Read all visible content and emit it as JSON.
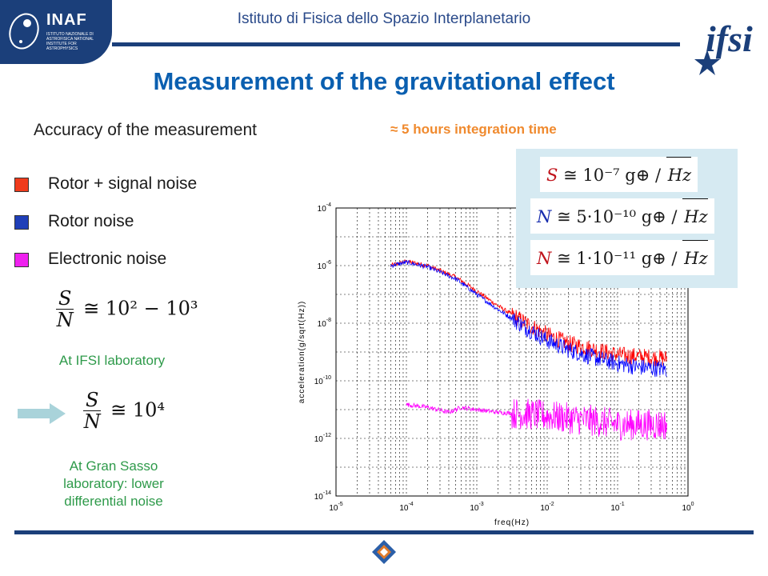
{
  "header": {
    "inaf_logo_name": "INAF",
    "inaf_logo_subtitle": "ISTITUTO NAZIONALE DI ASTROFISICA NATIONAL INSTITUTE FOR ASTROPHYSICS",
    "institute": "Istituto di Fisica dello Spazio Interplanetario",
    "ifsi_logo_text": "ifsi"
  },
  "slide": {
    "title": "Measurement of the gravitational effect",
    "subtitle": "Accuracy of the measurement",
    "integration_time": "≈ 5 hours integration time"
  },
  "legend": [
    {
      "label": "Rotor + signal noise",
      "color": "#ef3b1c"
    },
    {
      "label": "Rotor noise",
      "color": "#1f3fb8"
    },
    {
      "label": "Electronic noise",
      "color": "#ef21ef"
    }
  ],
  "formulas": {
    "ifsi": {
      "num": "S",
      "den": "N",
      "rhs": "≅ 10² − 10³",
      "caption": "At IFSI laboratory"
    },
    "gran_sasso": {
      "num": "S",
      "den": "N",
      "rhs": "≅ 10⁴",
      "caption_lines": [
        "At Gran Sasso",
        "laboratory: lower",
        "differential noise"
      ]
    }
  },
  "noise_box": [
    {
      "var": "S",
      "eq": "≅ 10⁻⁷ g⊕ /",
      "unit": "Hz",
      "color": "#c0141c"
    },
    {
      "var": "N",
      "eq": "≅ 5·10⁻¹⁰ g⊕ /",
      "unit": "Hz",
      "color": "#1a2fae"
    },
    {
      "var": "N",
      "eq": "≅ 1·10⁻¹¹ g⊕ /",
      "unit": "Hz",
      "color": "#c0141c"
    }
  ],
  "chart_data": {
    "type": "line",
    "xlabel": "freq(Hz)",
    "ylabel": "acceleration(g/sqrt(Hz))",
    "x_scale": "log",
    "y_scale": "log",
    "xlim": [
      1e-05,
      1
    ],
    "ylim": [
      1e-14,
      0.0001
    ],
    "grid": true,
    "x_ticks": [
      {
        "value": 1e-05,
        "base": "10",
        "exp": "-5"
      },
      {
        "value": 0.0001,
        "base": "10",
        "exp": "-4"
      },
      {
        "value": 0.001,
        "base": "10",
        "exp": "-3"
      },
      {
        "value": 0.01,
        "base": "10",
        "exp": "-2"
      },
      {
        "value": 0.1,
        "base": "10",
        "exp": "-1"
      },
      {
        "value": 1,
        "base": "10",
        "exp": "0"
      }
    ],
    "y_ticks": [
      {
        "value": 0.0001,
        "base": "10",
        "exp": "-4"
      },
      {
        "value": 1e-06,
        "base": "10",
        "exp": "-6"
      },
      {
        "value": 1e-08,
        "base": "10",
        "exp": "-8"
      },
      {
        "value": 1e-10,
        "base": "10",
        "exp": "-10"
      },
      {
        "value": 1e-12,
        "base": "10",
        "exp": "-12"
      },
      {
        "value": 1e-14,
        "base": "10",
        "exp": "-14"
      }
    ],
    "series": [
      {
        "name": "Rotor + signal noise",
        "color": "#ff0000",
        "x": [
          6e-05,
          0.0001,
          0.0002,
          0.0005,
          0.001,
          0.002,
          0.005,
          0.01,
          0.02,
          0.05,
          0.1,
          0.2,
          0.5
        ],
        "y": [
          1e-06,
          1.4e-06,
          1e-06,
          4e-07,
          1.3e-07,
          4e-08,
          1e-08,
          4e-09,
          2e-09,
          1.2e-09,
          8e-10,
          7e-10,
          6e-10
        ]
      },
      {
        "name": "Rotor noise",
        "color": "#0000ff",
        "x": [
          6e-05,
          0.0001,
          0.0002,
          0.0005,
          0.001,
          0.002,
          0.005,
          0.01,
          0.02,
          0.05,
          0.1,
          0.2,
          0.5
        ],
        "y": [
          1e-06,
          1.3e-06,
          9e-07,
          3.5e-07,
          1e-07,
          3e-08,
          7e-09,
          2.5e-09,
          1.2e-09,
          6e-10,
          4e-10,
          3e-10,
          2.5e-10
        ]
      },
      {
        "name": "Electronic noise",
        "color": "#ff00ff",
        "x": [
          0.0001,
          0.0002,
          0.0004,
          0.0006,
          0.001,
          0.002,
          0.005,
          0.01,
          0.02,
          0.05,
          0.1,
          0.2,
          0.5
        ],
        "y": [
          1.5e-11,
          1.2e-11,
          8e-12,
          1.2e-11,
          1e-11,
          8e-12,
          7e-12,
          6e-12,
          5e-12,
          4e-12,
          3e-12,
          3e-12,
          3e-12
        ]
      }
    ]
  }
}
